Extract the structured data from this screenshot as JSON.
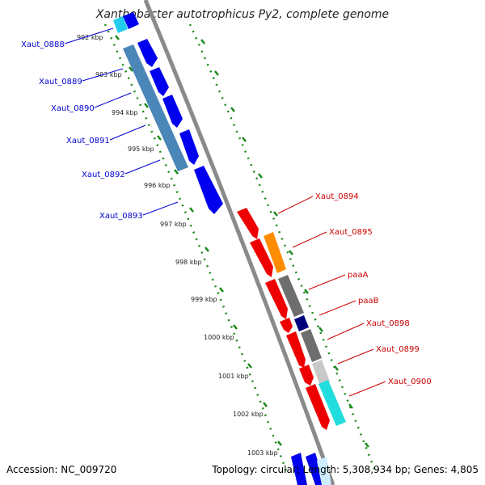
{
  "title": "Xanthobacter autotrophicus Py2, complete genome",
  "accession": "Accession: NC_009720",
  "summary": "Topology: circular; Length: 5,308,934 bp; Genes: 4,805",
  "colors": {
    "backbone": "#8a8a8a",
    "tick_track": "#1a8a1a",
    "label_left": "#0000cc",
    "label_right": "#cc0000"
  },
  "ticks": [
    "992 kbp",
    "993 kbp",
    "994 kbp",
    "995 kbp",
    "996 kbp",
    "997 kbp",
    "998 kbp",
    "999 kbp",
    "1000 kbp",
    "1001 kbp",
    "1002 kbp",
    "1003 kbp"
  ],
  "left_genes": [
    "Xaut_0888",
    "Xaut_0889",
    "Xaut_0890",
    "Xaut_0891",
    "Xaut_0892",
    "Xaut_0893"
  ],
  "right_genes": [
    "Xaut_0894",
    "Xaut_0895",
    "paaA",
    "paaB",
    "Xaut_0898",
    "Xaut_0899",
    "Xaut_0900"
  ]
}
